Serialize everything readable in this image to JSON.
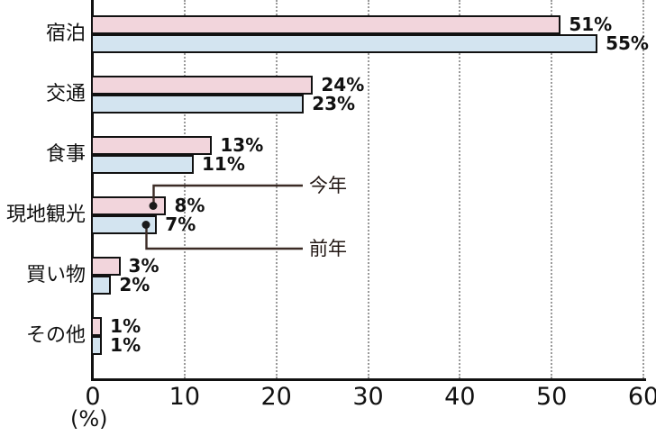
{
  "chart_data": {
    "type": "bar",
    "orientation": "horizontal",
    "title": "",
    "xlabel": "(%)",
    "ylabel": "",
    "xlim": [
      0,
      60
    ],
    "xticks": [
      0,
      10,
      20,
      30,
      40,
      50,
      60
    ],
    "grid": "vertical-dotted",
    "legend_position": "callout-annotations",
    "value_suffix": "%",
    "categories": [
      "宿泊",
      "交通",
      "食事",
      "現地観光",
      "買い物",
      "その他"
    ],
    "series": [
      {
        "name": "今年",
        "color": "#f2d5dc",
        "values": [
          51,
          24,
          13,
          8,
          3,
          1
        ]
      },
      {
        "name": "前年",
        "color": "#d3e4f0",
        "values": [
          55,
          23,
          11,
          7,
          2,
          1
        ]
      }
    ],
    "annotations": [
      {
        "label": "今年",
        "points_to": "現地観光 今年 bar"
      },
      {
        "label": "前年",
        "points_to": "現地観光 前年 bar"
      }
    ],
    "colors": {
      "bar_border": "#111111",
      "axis": "#111111",
      "gridline": "#9a9a9a",
      "callout_line": "#3b2b25",
      "callout_dot": "#1a1a1a",
      "text": "#111111"
    }
  }
}
